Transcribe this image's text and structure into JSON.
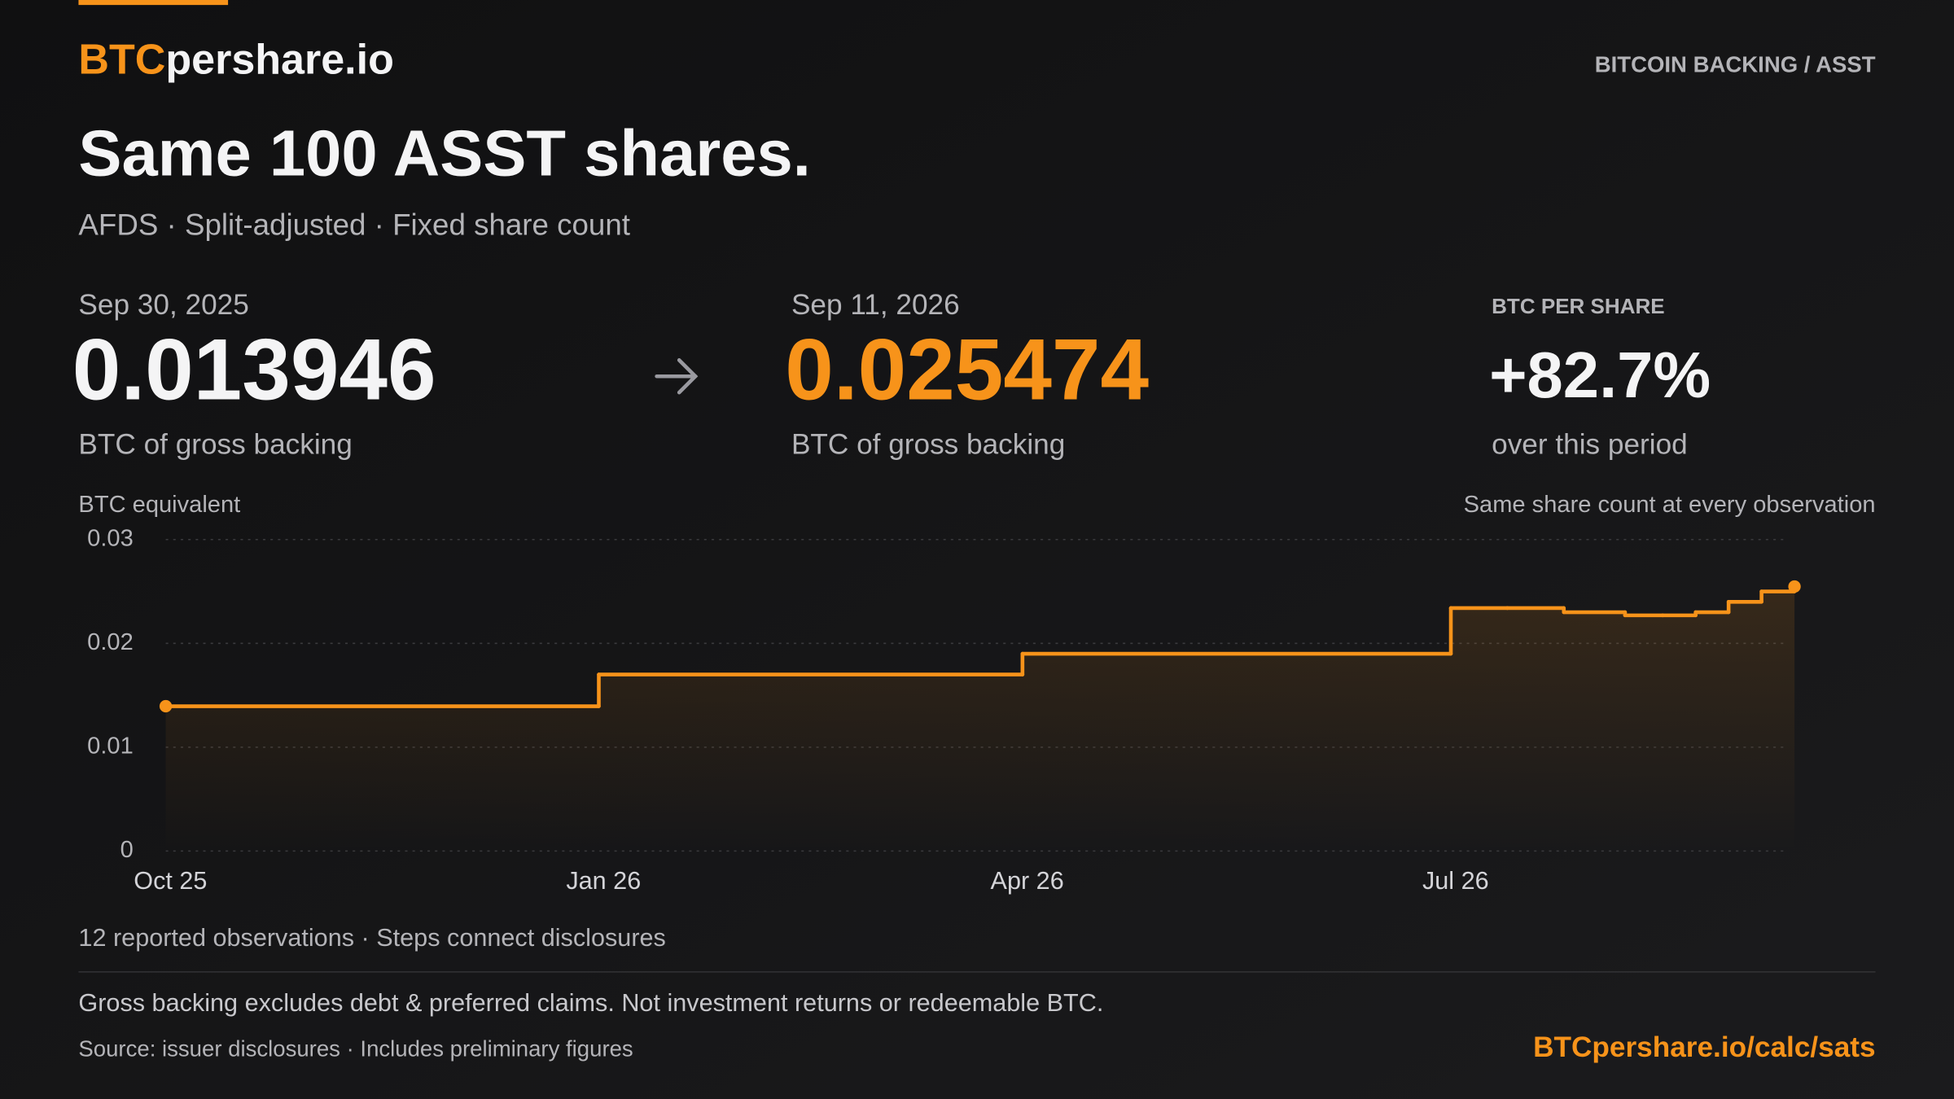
{
  "brand": {
    "highlight": "BTC",
    "rest": "pershare.io"
  },
  "header_tag": "BITCOIN BACKING / ASST",
  "title": "Same 100 ASST shares.",
  "subtitle": "AFDS · Split-adjusted · Fixed share count",
  "stats": {
    "start": {
      "date": "Sep 30, 2025",
      "value": "0.013946",
      "caption": "BTC of gross backing"
    },
    "end": {
      "date": "Sep 11, 2026",
      "value": "0.025474",
      "caption": "BTC of gross backing"
    },
    "change": {
      "label": "BTC PER SHARE",
      "value": "+82.7%",
      "caption": "over this period"
    }
  },
  "chart_data": {
    "type": "step",
    "y_label": "BTC equivalent",
    "note": "Same share count at every observation",
    "x": [
      "2025-09-30",
      "2025-12-31",
      "2026-03-31",
      "2026-06-30",
      "2026-07-12",
      "2026-07-24",
      "2026-08-06",
      "2026-08-14",
      "2026-08-21",
      "2026-08-28",
      "2026-09-04",
      "2026-09-11"
    ],
    "series": [
      {
        "name": "BTC equivalent",
        "color": "#f7931a",
        "values": [
          0.013946,
          0.017,
          0.019,
          0.0234,
          0.0234,
          0.023,
          0.0227,
          0.0227,
          0.023,
          0.024,
          0.025,
          0.025474
        ]
      }
    ],
    "xlim": [
      "2025-09-30",
      "2026-09-11"
    ],
    "xticks": [
      {
        "value": "2025-10-01",
        "label": "Oct 25"
      },
      {
        "value": "2026-01-01",
        "label": "Jan 26"
      },
      {
        "value": "2026-04-01",
        "label": "Apr 26"
      },
      {
        "value": "2026-07-01",
        "label": "Jul 26"
      }
    ],
    "ylim": [
      0,
      0.03
    ],
    "yticks": [
      0,
      0.01,
      0.02,
      0.03
    ],
    "grid": true
  },
  "footer": {
    "observations": "12 reported observations · Steps connect disclosures",
    "disclaimer": "Gross backing excludes debt & preferred claims. Not investment returns or redeemable BTC.",
    "source": "Source: issuer disclosures · Includes preliminary figures",
    "link": "BTCpershare.io/calc/sats"
  }
}
